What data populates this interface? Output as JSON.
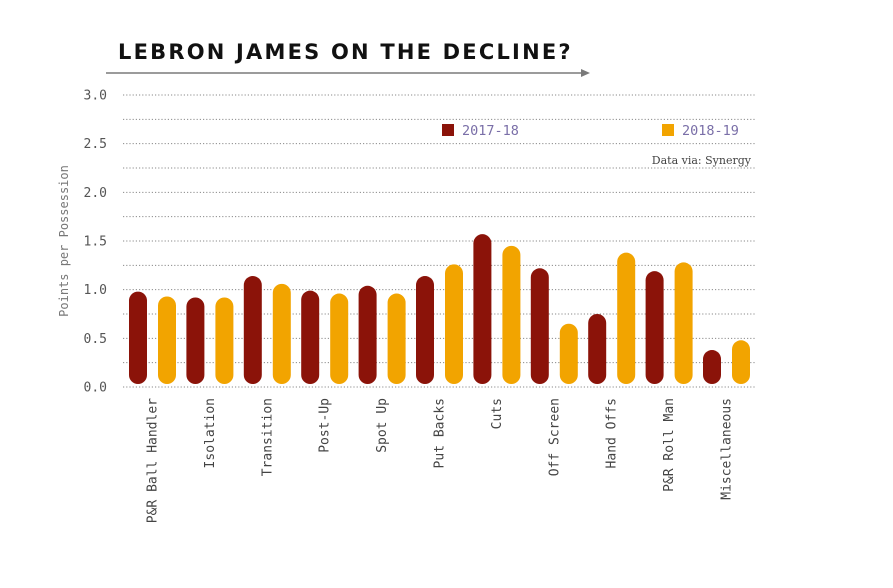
{
  "chart_data": {
    "type": "bar",
    "title": "LEBRON JAMES ON THE DECLINE?",
    "ylabel": "Points per Possession",
    "xlabel": "",
    "ylim": [
      0,
      3.0
    ],
    "yticks": [
      "0.0",
      "0.5",
      "1.0",
      "1.5",
      "2.0",
      "2.5",
      "3.0"
    ],
    "grid": true,
    "categories": [
      "P&R Ball Handler",
      "Isolation",
      "Transition",
      "Post-Up",
      "Spot Up",
      "Put Backs",
      "Cuts",
      "Off Screen",
      "Hand Offs",
      "P&R Roll Man",
      "Miscellaneous"
    ],
    "series": [
      {
        "name": "2017-18",
        "color": "#8b1309",
        "values": [
          0.98,
          0.92,
          1.14,
          0.99,
          1.04,
          1.14,
          1.57,
          1.22,
          0.75,
          1.19,
          0.38
        ]
      },
      {
        "name": "2018-19",
        "color": "#f2a400",
        "values": [
          0.93,
          0.92,
          1.06,
          0.96,
          0.96,
          1.26,
          1.45,
          0.65,
          1.38,
          1.28,
          0.48
        ]
      }
    ],
    "source": "Data via: Synergy",
    "legend_position": "top"
  }
}
